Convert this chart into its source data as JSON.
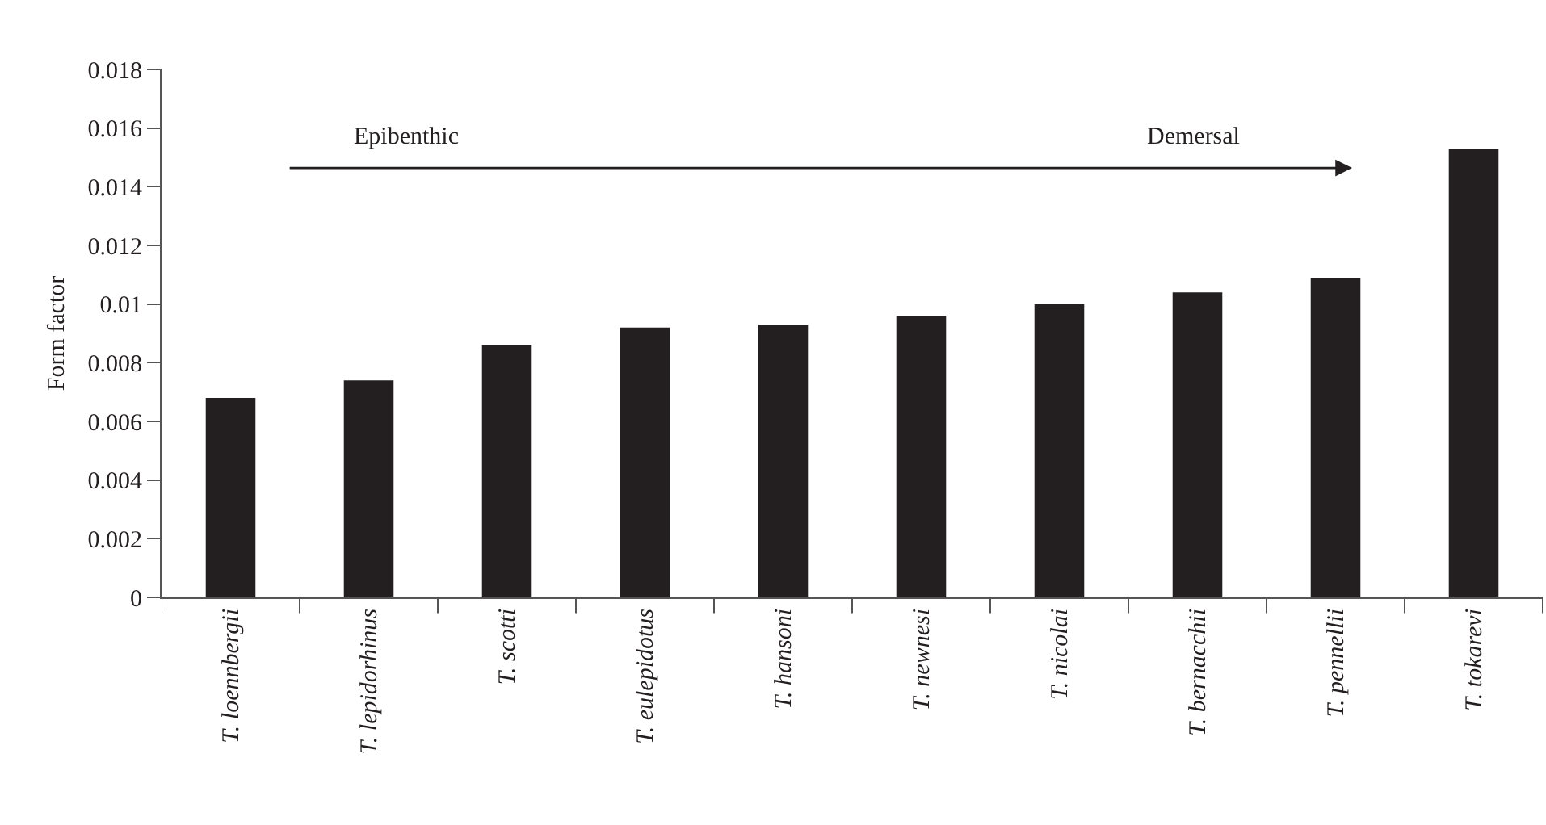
{
  "chart_data": {
    "type": "bar",
    "ylabel": "Form factor",
    "categories": [
      "T. loennbergii",
      "T. lepidorhinus",
      "T. scotti",
      "T. eulepidotus",
      "T. hansoni",
      "T. newnesi",
      "T. nicolai",
      "T. bernacchii",
      "T. pennellii",
      "T. tokarevi"
    ],
    "values": [
      0.0068,
      0.0074,
      0.0086,
      0.0092,
      0.0093,
      0.0096,
      0.01,
      0.0104,
      0.0109,
      0.0153
    ],
    "color": "#231f20",
    "ylim": [
      0,
      0.018
    ],
    "yticks": [
      0,
      0.002,
      0.004,
      0.006,
      0.008,
      0.01,
      0.012,
      0.014,
      0.016,
      0.018
    ],
    "grid": false,
    "legend": false,
    "annotations": [
      "Epibenthic",
      "Demersal"
    ]
  }
}
